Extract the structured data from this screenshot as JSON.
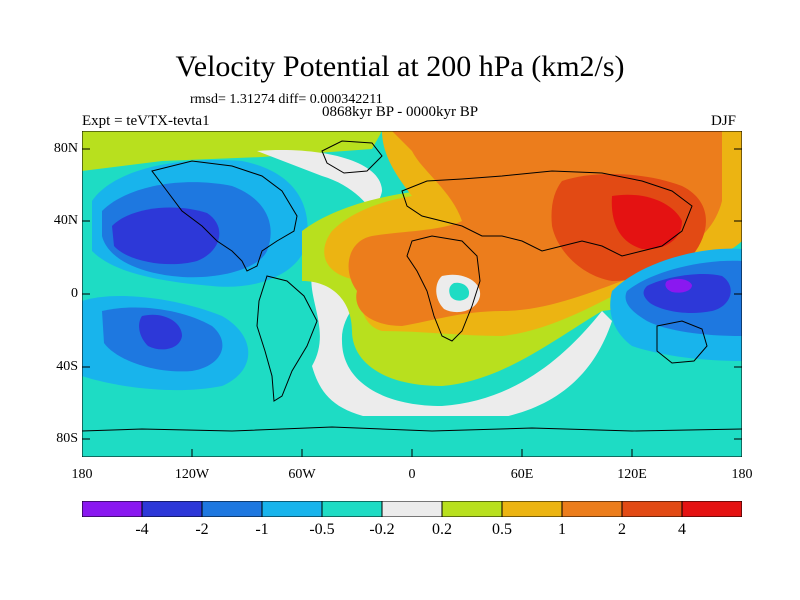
{
  "title": "Velocity Potential at 200 hPa (km2/s)",
  "stats_line": "rmsd= 1.31274 diff= 0.000342211",
  "period_line": "0868kyr BP - 0000kyr BP",
  "experiment_label": "Expt = teVTX-tevta1",
  "season_label": "DJF",
  "axes": {
    "lat_labels": [
      "80N",
      "40N",
      "0",
      "40S",
      "80S"
    ],
    "lon_labels": [
      "180",
      "120W",
      "60W",
      "0",
      "60E",
      "120E",
      "180"
    ]
  },
  "colorbar": {
    "labels": [
      "-4",
      "-2",
      "-1",
      "-0.5",
      "-0.2",
      "0.2",
      "0.5",
      "1",
      "2",
      "4"
    ],
    "colors": [
      "#8a18f0",
      "#2d38d8",
      "#1e78e0",
      "#18b4ec",
      "#1edcc4",
      "#ececec",
      "#b8e01e",
      "#ecb412",
      "#ec7d1c",
      "#e24a14",
      "#e41212"
    ]
  }
}
